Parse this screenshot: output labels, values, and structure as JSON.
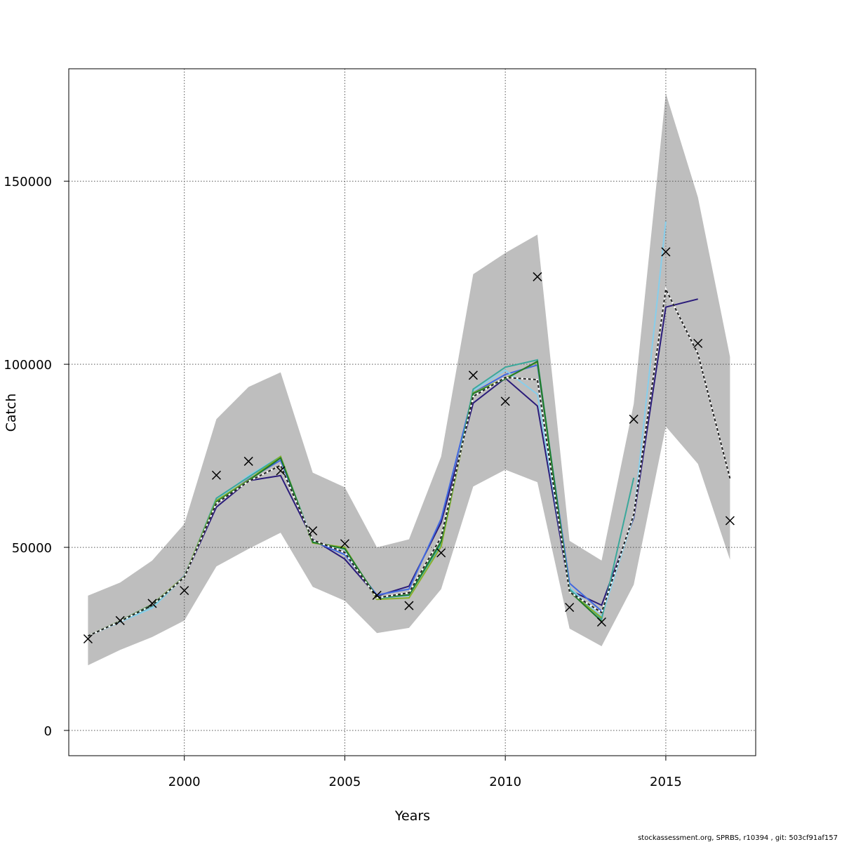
{
  "chart_data": {
    "type": "line",
    "title": "",
    "xlabel": "Years",
    "ylabel": "Catch",
    "xlim": [
      1996.4,
      2017.8
    ],
    "ylim": [
      -6900,
      180700
    ],
    "x_ticks": [
      2000,
      2005,
      2010,
      2015
    ],
    "y_ticks": [
      0,
      50000,
      100000,
      150000
    ],
    "x_tick_labels": [
      "2000",
      "2005",
      "2010",
      "2015"
    ],
    "y_tick_labels": [
      "0",
      "50000",
      "100000",
      "150000"
    ],
    "grid": true,
    "years": [
      1997,
      1998,
      1999,
      2000,
      2001,
      2002,
      2003,
      2004,
      2005,
      2006,
      2007,
      2008,
      2009,
      2010,
      2011,
      2012,
      2013,
      2014,
      2015,
      2016,
      2017
    ],
    "ci_band": {
      "color": "#bebebe",
      "lower": [
        17800,
        22000,
        25500,
        30000,
        44800,
        49600,
        54000,
        39200,
        35400,
        26600,
        28000,
        38600,
        66600,
        71200,
        67800,
        27800,
        23000,
        39800,
        83000,
        72800,
        46600
      ],
      "upper": [
        36800,
        40400,
        46400,
        56400,
        85000,
        93800,
        97800,
        70400,
        66400,
        50000,
        52200,
        74800,
        124600,
        130400,
        135400,
        51800,
        46400,
        89200,
        174000,
        145600,
        102000
      ]
    },
    "observed": {
      "marker": "x",
      "values": [
        25000,
        30000,
        34700,
        38200,
        69700,
        73500,
        70900,
        54500,
        51000,
        36900,
        34100,
        48500,
        97000,
        89900,
        123900,
        33600,
        29600,
        85000,
        130700,
        105700,
        57300
      ]
    },
    "series": [
      {
        "color": "#222222",
        "dashed": true,
        "values": [
          25800,
          29800,
          34200,
          41800,
          62000,
          68000,
          72400,
          52000,
          48600,
          36200,
          37600,
          52800,
          91200,
          96400,
          95800,
          37800,
          32200,
          59000,
          120500,
          102800,
          68800
        ]
      },
      {
        "color": "#2a1b7a",
        "values": [
          25800,
          29800,
          34200,
          41800,
          61000,
          68200,
          69600,
          52200,
          46800,
          36700,
          39400,
          56800,
          89400,
          96200,
          88600,
          38300,
          34200,
          58100,
          115600,
          117800,
          null
        ]
      },
      {
        "color": "#4169e1",
        "values": [
          25800,
          29800,
          34000,
          42200,
          62400,
          68600,
          73800,
          51800,
          48000,
          37000,
          38600,
          57800,
          92200,
          97200,
          99800,
          40200,
          32600,
          null,
          null,
          null,
          null
        ]
      },
      {
        "color": "#87ceeb",
        "values": [
          25800,
          29600,
          33400,
          42000,
          62800,
          69600,
          74800,
          51600,
          49400,
          36200,
          36800,
          50800,
          92800,
          98400,
          91800,
          39000,
          31000,
          58600,
          139000,
          null,
          null
        ]
      },
      {
        "color": "#3aa89b",
        "values": [
          25800,
          29800,
          34000,
          41800,
          63400,
          69200,
          74800,
          51400,
          49800,
          36000,
          37000,
          51000,
          93200,
          99200,
          101200,
          38600,
          30400,
          69000,
          null,
          null,
          null
        ]
      },
      {
        "color": "#8ab02a",
        "values": [
          25800,
          29900,
          34400,
          42000,
          62800,
          68400,
          74800,
          51200,
          50000,
          35800,
          36200,
          50200,
          92200,
          96200,
          100600,
          37800,
          30800,
          null,
          null,
          null,
          null
        ]
      },
      {
        "color": "#1e7a2a",
        "values": [
          25800,
          29900,
          34400,
          41800,
          62400,
          68200,
          74400,
          51400,
          49600,
          36400,
          37000,
          51600,
          92000,
          96000,
          100800,
          38000,
          29800,
          null,
          null,
          null,
          null
        ]
      }
    ],
    "footer": "stockassessment.org, SPRBS, r10394 , git: 503cf91af157"
  }
}
